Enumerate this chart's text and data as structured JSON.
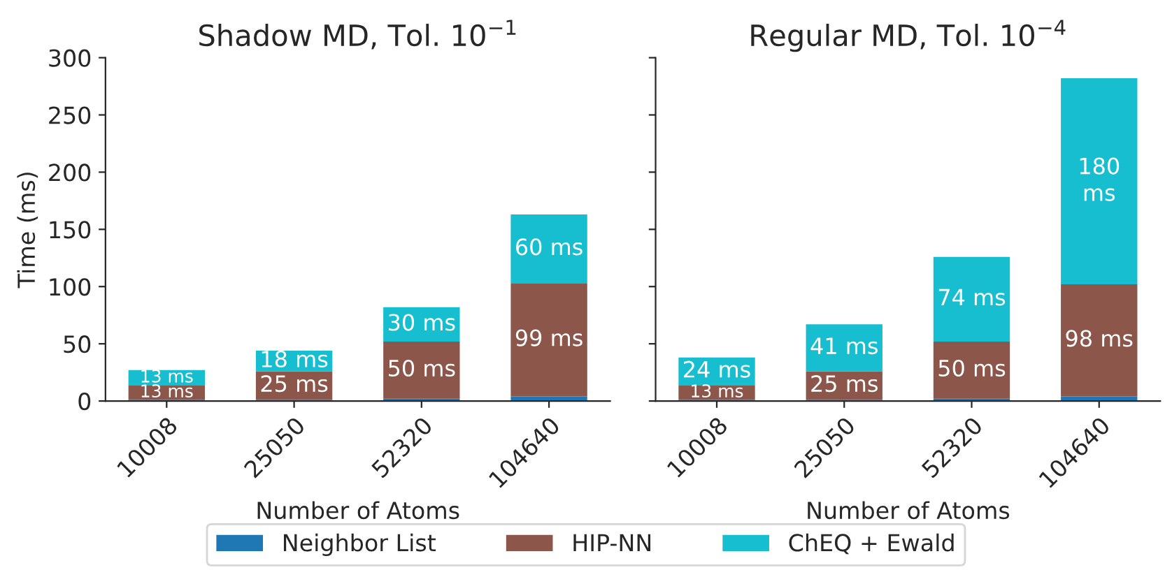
{
  "chart_data": [
    {
      "type": "bar",
      "stacked": true,
      "title": "Shadow MD, Tol. 10$^{−1}$",
      "xlabel": "Number of Atoms",
      "ylabel": "Time (ms)",
      "categories": [
        "10008",
        "25050",
        "52320",
        "104640"
      ],
      "ylim": [
        0,
        300
      ],
      "yticks": [
        0,
        50,
        100,
        150,
        200,
        250,
        300
      ],
      "legend": "bottom",
      "series": [
        {
          "name": "Neighbor List",
          "color": "#1f77b4",
          "values": [
            1,
            1,
            2,
            4
          ]
        },
        {
          "name": "HIP-NN",
          "color": "#8c564b",
          "values": [
            13,
            25,
            50,
            99
          ],
          "value_labels": [
            "13 ms",
            "25 ms",
            "50 ms",
            "99 ms"
          ]
        },
        {
          "name": "ChEQ + Ewald",
          "color": "#17becf",
          "values": [
            13,
            18,
            30,
            60
          ],
          "value_labels": [
            "13 ms",
            "18 ms",
            "30 ms",
            "60 ms"
          ]
        }
      ]
    },
    {
      "type": "bar",
      "stacked": true,
      "title": "Regular MD, Tol. 10$^{−4}$",
      "xlabel": "Number of Atoms",
      "categories": [
        "10008",
        "25050",
        "52320",
        "104640"
      ],
      "ylim": [
        0,
        300
      ],
      "yticks": [
        0,
        50,
        100,
        150,
        200,
        250,
        300
      ],
      "tick_labels": "x",
      "series": [
        {
          "color": "#1f77b4",
          "values": [
            1,
            1,
            2,
            4
          ]
        },
        {
          "color": "#8c564b",
          "values": [
            13,
            25,
            50,
            98
          ],
          "value_labels": [
            "13 ms",
            "25 ms",
            "50 ms",
            "98 ms"
          ]
        },
        {
          "color": "#17becf",
          "values": [
            24,
            41,
            74,
            180
          ],
          "value_labels": [
            "24 ms",
            "41 ms",
            "74 ms",
            "180\nms"
          ]
        }
      ]
    }
  ]
}
